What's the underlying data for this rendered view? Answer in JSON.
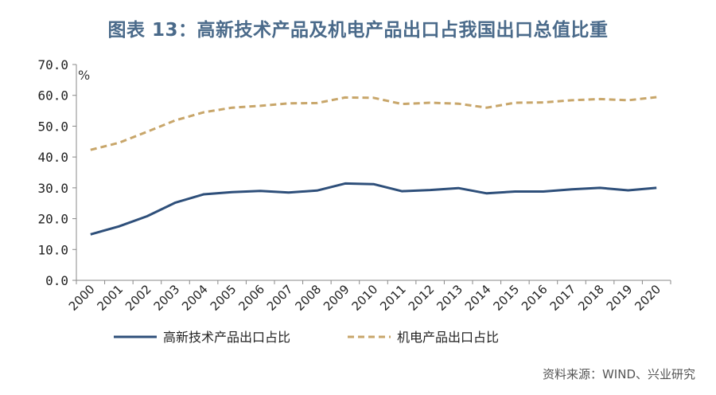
{
  "title": "图表 13：高新技术产品及机电产品出口占我国出口总值比重",
  "source": "资料来源：WIND、兴业研究",
  "chart_data": {
    "type": "line",
    "title": "图表 13：高新技术产品及机电产品出口占我国出口总值比重",
    "xlabel": "",
    "ylabel": "%",
    "ylim": [
      0,
      70
    ],
    "yticks": [
      "0.0",
      "10.0",
      "20.0",
      "30.0",
      "40.0",
      "50.0",
      "60.0",
      "70.0"
    ],
    "ytick_values": [
      0,
      10,
      20,
      30,
      40,
      50,
      60,
      70
    ],
    "categories": [
      "2000",
      "2001",
      "2002",
      "2003",
      "2004",
      "2005",
      "2006",
      "2007",
      "2008",
      "2009",
      "2010",
      "2011",
      "2012",
      "2013",
      "2014",
      "2015",
      "2016",
      "2017",
      "2018",
      "2019",
      "2020"
    ],
    "legend_position": "bottom",
    "grid": false,
    "series": [
      {
        "name": "高新技术产品出口占比",
        "color": "#2e4f7a",
        "style": "solid",
        "values": [
          14.9,
          17.5,
          20.8,
          25.2,
          27.9,
          28.6,
          29.0,
          28.5,
          29.1,
          31.4,
          31.2,
          28.9,
          29.3,
          29.9,
          28.2,
          28.8,
          28.8,
          29.5,
          30.0,
          29.2,
          30.0
        ]
      },
      {
        "name": "机电产品出口占比",
        "color": "#c8a66a",
        "style": "dashed",
        "values": [
          42.3,
          44.6,
          48.2,
          51.9,
          54.5,
          56.0,
          56.6,
          57.4,
          57.5,
          59.3,
          59.2,
          57.2,
          57.6,
          57.3,
          56.0,
          57.6,
          57.7,
          58.4,
          58.8,
          58.4,
          59.4
        ]
      }
    ]
  }
}
